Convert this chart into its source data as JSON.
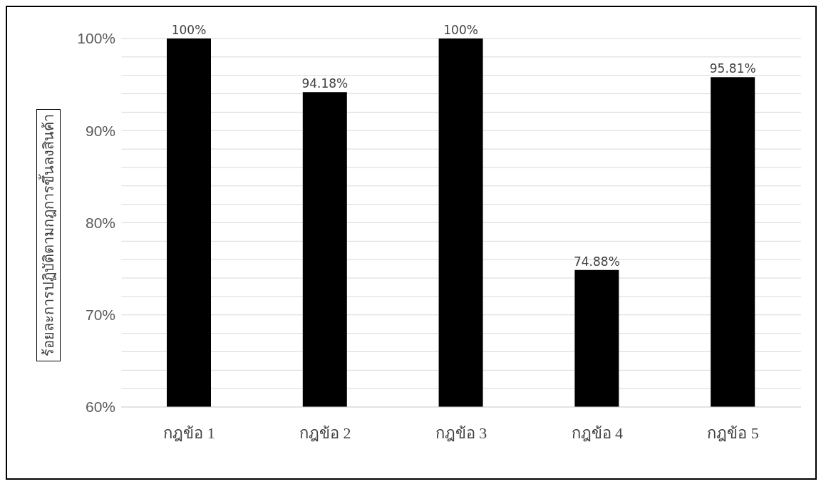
{
  "chart_data": {
    "type": "bar",
    "ylabel": "ร้อยละการปฏิบัติตามกฎการขึ้นลงสินค้า",
    "categories": [
      "กฎข้อ 1",
      "กฎข้อ 2",
      "กฎข้อ 3",
      "กฎข้อ 4",
      "กฎข้อ 5"
    ],
    "values": [
      100,
      94.18,
      100,
      74.88,
      95.81
    ],
    "value_labels": [
      "100%",
      "94.18%",
      "100%",
      "74.88%",
      "95.81%"
    ],
    "colors": [
      "#000000",
      "#000000",
      "#000000",
      "#000000",
      "#000000"
    ],
    "ylim": [
      60,
      100
    ],
    "yticks": [
      {
        "value": 60,
        "label": "60%"
      },
      {
        "value": 62,
        "label": null
      },
      {
        "value": 64,
        "label": null
      },
      {
        "value": 66,
        "label": null
      },
      {
        "value": 68,
        "label": null
      },
      {
        "value": 70,
        "label": "70%"
      },
      {
        "value": 72,
        "label": null
      },
      {
        "value": 74,
        "label": null
      },
      {
        "value": 76,
        "label": null
      },
      {
        "value": 78,
        "label": null
      },
      {
        "value": 80,
        "label": "80%"
      },
      {
        "value": 82,
        "label": null
      },
      {
        "value": 84,
        "label": null
      },
      {
        "value": 86,
        "label": null
      },
      {
        "value": 88,
        "label": null
      },
      {
        "value": 90,
        "label": "90%"
      },
      {
        "value": 92,
        "label": null
      },
      {
        "value": 94,
        "label": null
      },
      {
        "value": 96,
        "label": null
      },
      {
        "value": 98,
        "label": null
      },
      {
        "value": 100,
        "label": "100%"
      }
    ],
    "grid": true,
    "legend": false
  }
}
